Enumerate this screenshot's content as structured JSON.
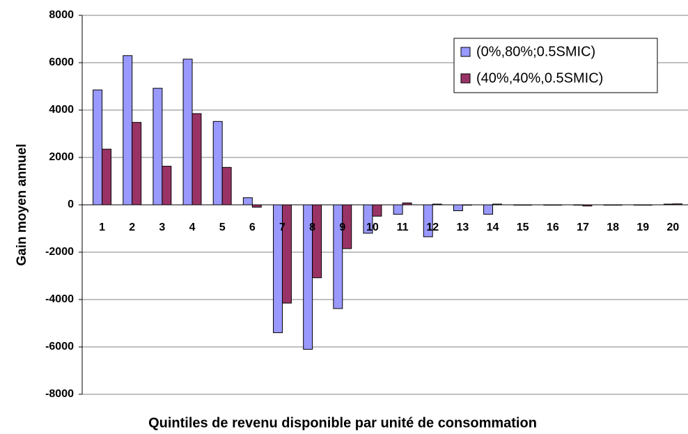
{
  "chart_data": {
    "type": "bar",
    "x_label": "Quintiles de revenu disponible par unité de consommation",
    "y_label": "Gain moyen annuel",
    "categories": [
      "1",
      "2",
      "3",
      "4",
      "5",
      "6",
      "7",
      "8",
      "9",
      "10",
      "11",
      "12",
      "13",
      "14",
      "15",
      "16",
      "17",
      "18",
      "19",
      "20"
    ],
    "series": [
      {
        "name": "(0%,80%;0.5SMIC)",
        "color": "#9999ff",
        "values": [
          4850,
          6300,
          4920,
          6150,
          3520,
          300,
          -5400,
          -6100,
          -4380,
          -1200,
          -400,
          -1350,
          -250,
          -400,
          0,
          0,
          0,
          0,
          0,
          30
        ]
      },
      {
        "name": "(40%,40%,0.5SMIC)",
        "color": "#993366",
        "values": [
          2350,
          3480,
          1630,
          3850,
          1580,
          -100,
          -4150,
          -3080,
          -1850,
          -480,
          80,
          30,
          0,
          30,
          0,
          0,
          -50,
          0,
          0,
          40
        ]
      }
    ],
    "ylim": [
      -8000,
      8000
    ],
    "yticks": [
      -8000,
      -6000,
      -4000,
      -2000,
      0,
      2000,
      4000,
      6000,
      8000
    ],
    "grid": true,
    "legend": "upper right"
  }
}
